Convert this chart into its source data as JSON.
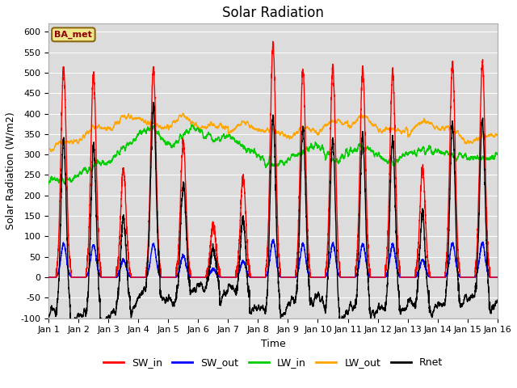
{
  "title": "Solar Radiation",
  "xlabel": "Time",
  "ylabel": "Solar Radiation (W/m2)",
  "ylim": [
    -100,
    620
  ],
  "yticks": [
    -100,
    -50,
    0,
    50,
    100,
    150,
    200,
    250,
    300,
    350,
    400,
    450,
    500,
    550,
    600
  ],
  "background_color": "#dcdcdc",
  "legend_label": "BA_met",
  "legend_box_color": "#f0e68c",
  "legend_box_edge": "#8b6914",
  "series_colors": {
    "SW_in": "#ff0000",
    "SW_out": "#0000ff",
    "LW_in": "#00cc00",
    "LW_out": "#ffa500",
    "Rnet": "#000000"
  },
  "line_width": 1.0,
  "title_fontsize": 12,
  "label_fontsize": 9,
  "tick_fontsize": 8,
  "sw_peaks": [
    510,
    495,
    265,
    508,
    330,
    130,
    245,
    570,
    508,
    510,
    510,
    500,
    265,
    525,
    525
  ],
  "n_points": 4320
}
